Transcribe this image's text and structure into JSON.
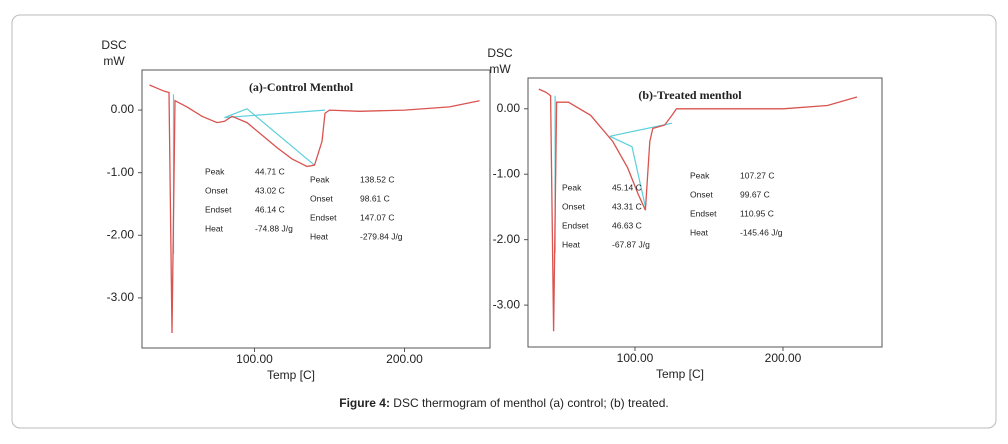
{
  "chart_data": [
    {
      "type": "line",
      "title": "(a)-Control Menthol",
      "y_label": [
        "DSC",
        "mW"
      ],
      "x_label": "Temp  [C]",
      "x": [
        30,
        35,
        40,
        43,
        45,
        47,
        55,
        65,
        75,
        80,
        85,
        95,
        105,
        115,
        125,
        135,
        140,
        145,
        147,
        150,
        170,
        200,
        230,
        250
      ],
      "values": [
        0.4,
        0.35,
        0.3,
        0.28,
        -3.56,
        0.15,
        0.05,
        -0.1,
        -0.2,
        -0.18,
        -0.1,
        -0.2,
        -0.4,
        -0.6,
        -0.78,
        -0.9,
        -0.88,
        -0.5,
        -0.05,
        0.0,
        -0.02,
        0.0,
        0.05,
        0.15
      ],
      "color": "#d9534f",
      "tangent_lines": [
        {
          "x": [
            80,
            147
          ],
          "values": [
            -0.12,
            0.0
          ]
        },
        {
          "x": [
            80,
            95,
            140
          ],
          "values": [
            -0.12,
            0.02,
            -0.88
          ]
        },
        {
          "x": [
            46,
            46
          ],
          "values": [
            0.25,
            -2.3
          ]
        }
      ],
      "tangent_color": "#5bd0dc",
      "xlim": [
        25,
        257
      ],
      "ylim": [
        -3.8,
        0.64
      ],
      "xticks": [
        {
          "value": 100,
          "label": "100.00"
        },
        {
          "value": 200,
          "label": "200.00"
        }
      ],
      "yticks": [
        {
          "value": 0,
          "label": "0.00"
        },
        {
          "value": -1,
          "label": "-1.00"
        },
        {
          "value": -2,
          "label": "-2.00"
        },
        {
          "value": -3,
          "label": "-3.00"
        }
      ],
      "annotations": [
        {
          "labels": [
            "Peak",
            "Onset",
            "Endset",
            "Heat"
          ],
          "values": [
            "44.71 C",
            "43.02 C",
            "46.14 C",
            "-74.88 J/g"
          ]
        },
        {
          "labels": [
            "Peak",
            "Onset",
            "Endset",
            "Heat"
          ],
          "values": [
            "138.52 C",
            "98.61 C",
            "147.07 C",
            "-279.84 J/g"
          ]
        }
      ]
    },
    {
      "type": "line",
      "title": "(b)-Treated menthol",
      "y_label": [
        "DSC",
        "mW"
      ],
      "x_label": "Temp  [C]",
      "x": [
        35,
        40,
        43,
        45,
        47,
        55,
        70,
        85,
        95,
        102,
        107,
        110,
        112,
        120,
        125,
        128,
        150,
        200,
        230,
        250
      ],
      "values": [
        0.3,
        0.25,
        0.2,
        -3.4,
        0.1,
        0.1,
        -0.1,
        -0.5,
        -0.9,
        -1.3,
        -1.55,
        -0.5,
        -0.3,
        -0.25,
        -0.1,
        0.0,
        0.0,
        0.0,
        0.05,
        0.18
      ],
      "color": "#d9534f",
      "tangent_lines": [
        {
          "x": [
            83,
            125
          ],
          "values": [
            -0.42,
            -0.22
          ]
        },
        {
          "x": [
            83,
            98,
            107
          ],
          "values": [
            -0.42,
            -0.58,
            -1.5
          ]
        },
        {
          "x": [
            46,
            46
          ],
          "values": [
            0.2,
            -2.2
          ]
        }
      ],
      "tangent_color": "#5bd0dc",
      "xlim": [
        27.7,
        266.9
      ],
      "ylim": [
        -3.64,
        0.47
      ],
      "xticks": [
        {
          "value": 100,
          "label": "100.00"
        },
        {
          "value": 200,
          "label": "200.00"
        }
      ],
      "yticks": [
        {
          "value": 0,
          "label": "0.00"
        },
        {
          "value": -1,
          "label": "-1.00"
        },
        {
          "value": -2,
          "label": "-2.00"
        },
        {
          "value": -3,
          "label": "-3.00"
        }
      ],
      "annotations": [
        {
          "labels": [
            "Peak",
            "Onset",
            "Endset",
            "Heat"
          ],
          "values": [
            "45.14 C",
            "43.31 C",
            "46.63 C",
            "-67.87 J/g"
          ]
        },
        {
          "labels": [
            "Peak",
            "Onset",
            "Endset",
            "Heat"
          ],
          "values": [
            "107.27 C",
            "99.67 C",
            "110.95 C",
            "-145.46 J/g"
          ]
        }
      ]
    }
  ],
  "caption": {
    "label": "Figure 4:",
    "text": " DSC thermogram of menthol (a) control; (b) treated."
  }
}
